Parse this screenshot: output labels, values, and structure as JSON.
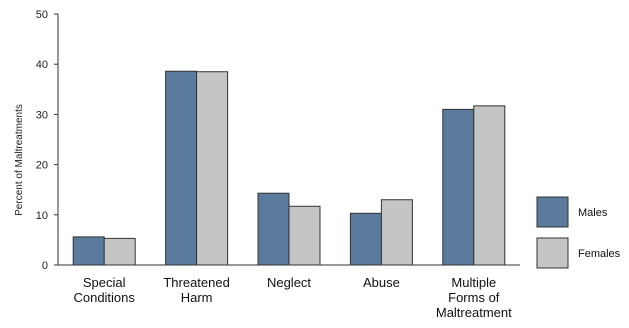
{
  "chart_data": {
    "type": "bar",
    "title": "",
    "xlabel": "",
    "ylabel": "Percent of Maltreatments",
    "ylim": [
      0,
      50
    ],
    "yticks": [
      0,
      10,
      20,
      30,
      40,
      50
    ],
    "categories": [
      [
        "Special",
        "Conditions"
      ],
      [
        "Threatened",
        "Harm"
      ],
      [
        "Neglect"
      ],
      [
        "Abuse"
      ],
      [
        "Multiple",
        "Forms of",
        "Maltreatment"
      ]
    ],
    "series": [
      {
        "name": "Males",
        "color": "#5b7b9d",
        "values": [
          5.6,
          38.6,
          14.3,
          10.3,
          31.0
        ]
      },
      {
        "name": "Females",
        "color": "#c5c5c5",
        "values": [
          5.3,
          38.5,
          11.7,
          13.0,
          31.7
        ]
      }
    ],
    "legend_position": "right",
    "grid": false
  }
}
